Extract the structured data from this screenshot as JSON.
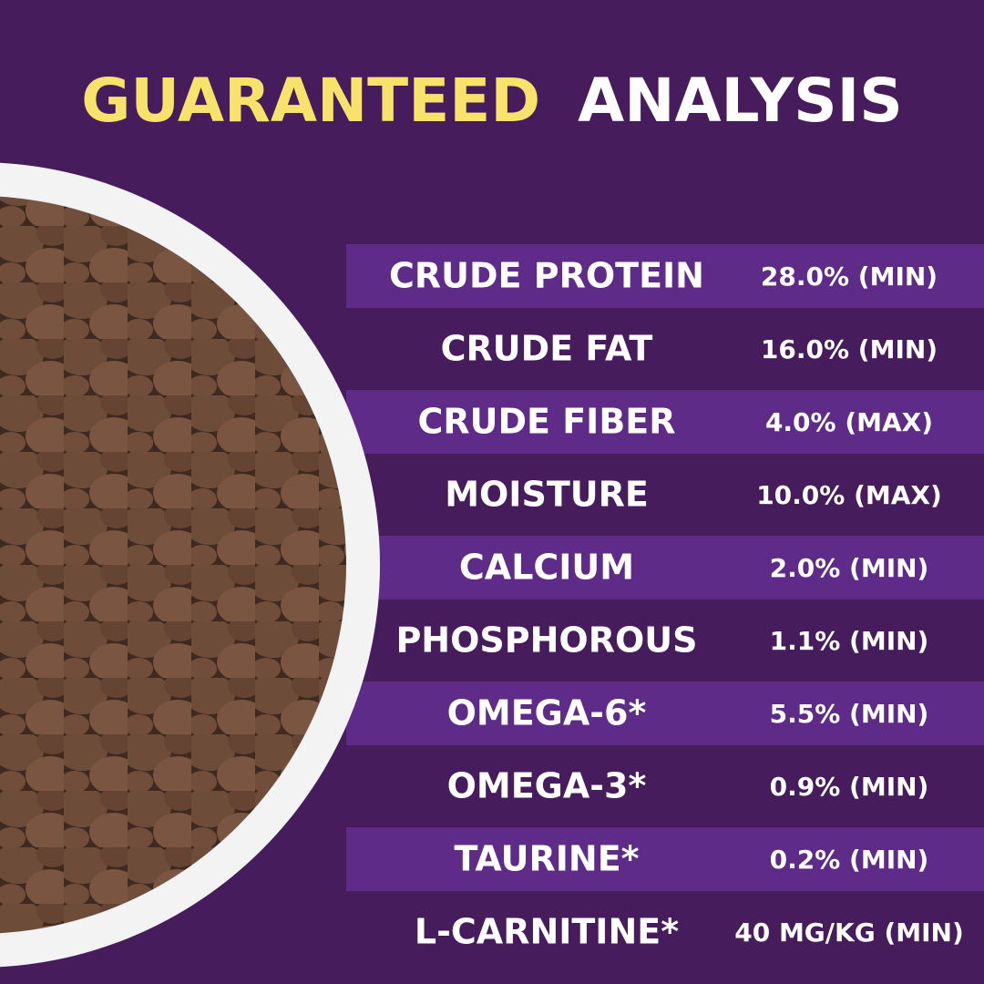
{
  "header": {
    "title_highlight": "GUARANTEED",
    "title_rest": "ANALYSIS"
  },
  "table": {
    "rows": [
      [
        "CRUDE PROTEIN",
        "28.0% (MIN)"
      ],
      [
        "CRUDE FAT",
        "16.0% (MIN)"
      ],
      [
        "CRUDE FIBER",
        "4.0% (MAX)"
      ],
      [
        "MOISTURE",
        "10.0% (MAX)"
      ],
      [
        "CALCIUM",
        "2.0% (MIN)"
      ],
      [
        "PHOSPHOROUS",
        "1.1% (MIN)"
      ],
      [
        "OMEGA-6*",
        "5.5% (MIN)"
      ],
      [
        "OMEGA-3*",
        "0.9% (MIN)"
      ],
      [
        "TAURINE*",
        "0.2% (MIN)"
      ],
      [
        "L-CARNITINE*",
        "40 MG/KG (MIN)"
      ]
    ]
  }
}
